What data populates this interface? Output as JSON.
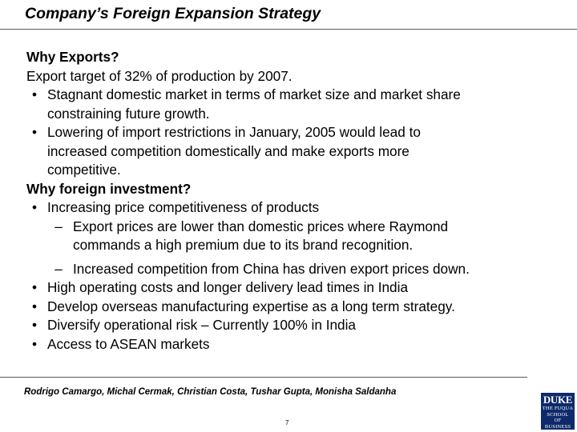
{
  "title": "Company’s Foreign Expansion Strategy",
  "sections": {
    "exports_heading": "Why Exports?",
    "export_target": "Export target of 32% of production by 2007.",
    "export_bullets": [
      [
        "Stagnant domestic market in terms of market size and market share",
        "constraining future growth."
      ],
      [
        "Lowering of import restrictions in January, 2005 would lead to",
        "increased competition domestically and make exports more",
        "competitive."
      ]
    ],
    "investment_heading": "Why foreign investment?",
    "investment_bullet_1": "Increasing price competitiveness of products",
    "sub_bullets": [
      [
        "Export prices are lower than domestic prices where Raymond",
        "commands a high premium due to its brand recognition."
      ],
      [
        "Increased competition from China has driven export prices down."
      ]
    ],
    "investment_bullets_rest": [
      "High operating costs and longer delivery lead times in India",
      "Develop overseas manufacturing expertise as a long term strategy.",
      "Diversify operational risk – Currently 100% in India",
      "Access to ASEAN markets"
    ],
    "bullet_symbol": "•",
    "dash_symbol": "–"
  },
  "footer": {
    "authors": "Rodrigo Camargo, Michal Cermak, Christian Costa, Tushar Gupta, Monisha Saldanha",
    "page_number": "7"
  },
  "logo": {
    "name": "DUKE",
    "lines": [
      "THE FUQUA",
      "SCHOOL",
      "OF BUSINESS"
    ]
  },
  "colors": {
    "logo_background": "#0f2a6b",
    "rule": "#5a5a5a"
  }
}
